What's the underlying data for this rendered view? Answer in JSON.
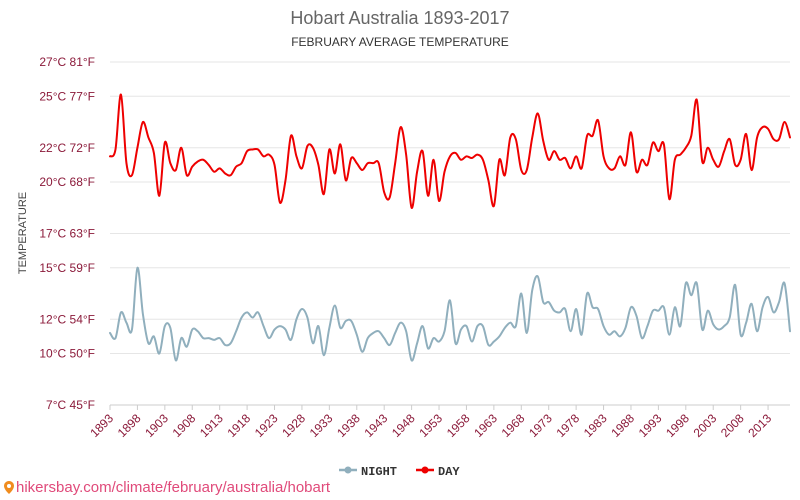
{
  "chart_data": {
    "type": "line",
    "title": "Hobart Australia 1893-2017",
    "subtitle": "FEBRUARY AVERAGE TEMPERATURE",
    "ylabel": "TEMPERATURE",
    "xlabel": "",
    "ylim": [
      7,
      27
    ],
    "ytick_values": [
      7,
      10,
      12,
      15,
      17,
      20,
      22,
      25,
      27
    ],
    "ytick_labels": [
      "7°C 45°F",
      "10°C 50°F",
      "12°C 54°F",
      "15°C 59°F",
      "17°C 63°F",
      "20°C 68°F",
      "22°C 72°F",
      "25°C 77°F",
      "27°C 81°F"
    ],
    "x_range": [
      1893,
      2017
    ],
    "xtick_labels": [
      "1893",
      "1898",
      "1903",
      "1908",
      "1913",
      "1918",
      "1923",
      "1928",
      "1933",
      "1938",
      "1943",
      "1948",
      "1953",
      "1958",
      "1963",
      "1968",
      "1973",
      "1978",
      "1983",
      "1988",
      "1993",
      "1998",
      "2003",
      "2008",
      "2013"
    ],
    "legend_position": "bottom-center",
    "series": [
      {
        "name": "NIGHT",
        "color": "#90afbd",
        "x": [
          1893,
          1894,
          1895,
          1896,
          1897,
          1898,
          1899,
          1900,
          1901,
          1902,
          1903,
          1904,
          1905,
          1906,
          1907,
          1908,
          1909,
          1910,
          1911,
          1912,
          1913,
          1914,
          1915,
          1916,
          1917,
          1918,
          1919,
          1920,
          1921,
          1922,
          1923,
          1924,
          1925,
          1926,
          1927,
          1928,
          1929,
          1930,
          1931,
          1932,
          1933,
          1934,
          1935,
          1936,
          1937,
          1938,
          1939,
          1940,
          1941,
          1942,
          1943,
          1944,
          1945,
          1946,
          1947,
          1948,
          1949,
          1950,
          1951,
          1952,
          1953,
          1954,
          1955,
          1956,
          1957,
          1958,
          1959,
          1960,
          1961,
          1962,
          1963,
          1964,
          1965,
          1966,
          1967,
          1968,
          1969,
          1970,
          1971,
          1972,
          1973,
          1974,
          1975,
          1976,
          1977,
          1978,
          1979,
          1980,
          1981,
          1982,
          1983,
          1984,
          1985,
          1986,
          1987,
          1988,
          1989,
          1990,
          1991,
          1992,
          1993,
          1994,
          1995,
          1996,
          1997,
          1998,
          1999,
          2000,
          2001,
          2002,
          2003,
          2004,
          2005,
          2006,
          2007,
          2008,
          2009,
          2010,
          2011,
          2012,
          2013,
          2014,
          2015,
          2016,
          2017
        ],
        "values": [
          11.2,
          10.9,
          12.4,
          11.8,
          11.4,
          15.0,
          12.3,
          10.6,
          11.0,
          10.0,
          11.6,
          11.5,
          9.6,
          10.9,
          10.4,
          11.4,
          11.3,
          10.9,
          10.9,
          10.8,
          10.9,
          10.5,
          10.6,
          11.3,
          12.1,
          12.4,
          12.1,
          12.4,
          11.6,
          10.9,
          11.4,
          11.6,
          11.4,
          10.8,
          12.0,
          12.6,
          12.1,
          10.6,
          11.6,
          9.9,
          11.5,
          12.8,
          11.5,
          11.9,
          11.9,
          11.1,
          10.1,
          10.9,
          11.2,
          11.3,
          10.9,
          10.5,
          11.2,
          11.8,
          11.3,
          9.6,
          10.6,
          11.6,
          10.3,
          10.9,
          10.7,
          11.3,
          13.1,
          10.6,
          11.4,
          11.6,
          10.7,
          11.6,
          11.6,
          10.5,
          10.7,
          11.0,
          11.5,
          11.8,
          11.6,
          13.5,
          11.2,
          13.7,
          14.5,
          13.0,
          13.0,
          12.5,
          12.4,
          12.6,
          11.3,
          12.6,
          11.1,
          13.5,
          12.7,
          12.6,
          11.6,
          11.1,
          11.3,
          11.0,
          11.5,
          12.7,
          12.2,
          10.9,
          11.6,
          12.5,
          12.5,
          12.7,
          11.1,
          12.7,
          11.6,
          14.1,
          13.4,
          14.1,
          11.4,
          12.5,
          11.7,
          11.4,
          11.6,
          12.1,
          14.0,
          11.1,
          11.8,
          12.9,
          11.3,
          12.7,
          13.3,
          12.4,
          13.0,
          14.1,
          11.3
        ]
      },
      {
        "name": "DAY",
        "color": "#ee0000",
        "x": [
          1893,
          1894,
          1895,
          1896,
          1897,
          1898,
          1899,
          1900,
          1901,
          1902,
          1903,
          1904,
          1905,
          1906,
          1907,
          1908,
          1909,
          1910,
          1911,
          1912,
          1913,
          1914,
          1915,
          1916,
          1917,
          1918,
          1919,
          1920,
          1921,
          1922,
          1923,
          1924,
          1925,
          1926,
          1927,
          1928,
          1929,
          1930,
          1931,
          1932,
          1933,
          1934,
          1935,
          1936,
          1937,
          1938,
          1939,
          1940,
          1941,
          1942,
          1943,
          1944,
          1945,
          1946,
          1947,
          1948,
          1949,
          1950,
          1951,
          1952,
          1953,
          1954,
          1955,
          1956,
          1957,
          1958,
          1959,
          1960,
          1961,
          1962,
          1963,
          1964,
          1965,
          1966,
          1967,
          1968,
          1969,
          1970,
          1971,
          1972,
          1973,
          1974,
          1975,
          1976,
          1977,
          1978,
          1979,
          1980,
          1981,
          1982,
          1983,
          1984,
          1985,
          1986,
          1987,
          1988,
          1989,
          1990,
          1991,
          1992,
          1993,
          1994,
          1995,
          1996,
          1997,
          1998,
          1999,
          2000,
          2001,
          2002,
          2003,
          2004,
          2005,
          2006,
          2007,
          2008,
          2009,
          2010,
          2011,
          2012,
          2013,
          2014,
          2015,
          2016,
          2017
        ],
        "values": [
          21.5,
          21.9,
          25.1,
          21.1,
          20.4,
          22.0,
          23.5,
          22.6,
          21.7,
          19.2,
          22.3,
          21.1,
          20.7,
          22.0,
          20.4,
          20.9,
          21.2,
          21.3,
          21.0,
          20.6,
          20.8,
          20.5,
          20.4,
          20.9,
          21.1,
          21.8,
          21.9,
          21.9,
          21.5,
          21.6,
          21.0,
          18.8,
          20.1,
          22.7,
          21.5,
          20.8,
          22.1,
          22.0,
          21.0,
          19.3,
          21.9,
          20.5,
          22.2,
          20.1,
          21.4,
          21.1,
          20.7,
          21.1,
          21.1,
          21.1,
          19.4,
          19.1,
          21.1,
          23.2,
          21.6,
          18.5,
          20.6,
          21.8,
          19.2,
          21.3,
          18.9,
          20.6,
          21.5,
          21.7,
          21.3,
          21.5,
          21.4,
          21.6,
          21.3,
          20.1,
          18.6,
          21.3,
          20.4,
          22.6,
          22.5,
          20.7,
          20.7,
          22.6,
          24.0,
          22.4,
          21.3,
          21.8,
          21.3,
          21.4,
          20.8,
          21.5,
          20.8,
          22.7,
          22.7,
          23.6,
          21.5,
          20.8,
          20.8,
          21.5,
          21.0,
          22.9,
          20.6,
          21.3,
          21.0,
          22.3,
          21.8,
          22.2,
          19.0,
          21.3,
          21.6,
          22.0,
          22.7,
          24.8,
          21.2,
          22.0,
          21.3,
          20.9,
          21.8,
          22.5,
          21.0,
          21.3,
          22.8,
          20.7,
          22.6,
          23.2,
          23.1,
          22.5,
          22.5,
          23.5,
          22.6
        ]
      }
    ]
  },
  "footer": {
    "url_text": "hikersbay.com/climate/february/australia/hobart"
  }
}
